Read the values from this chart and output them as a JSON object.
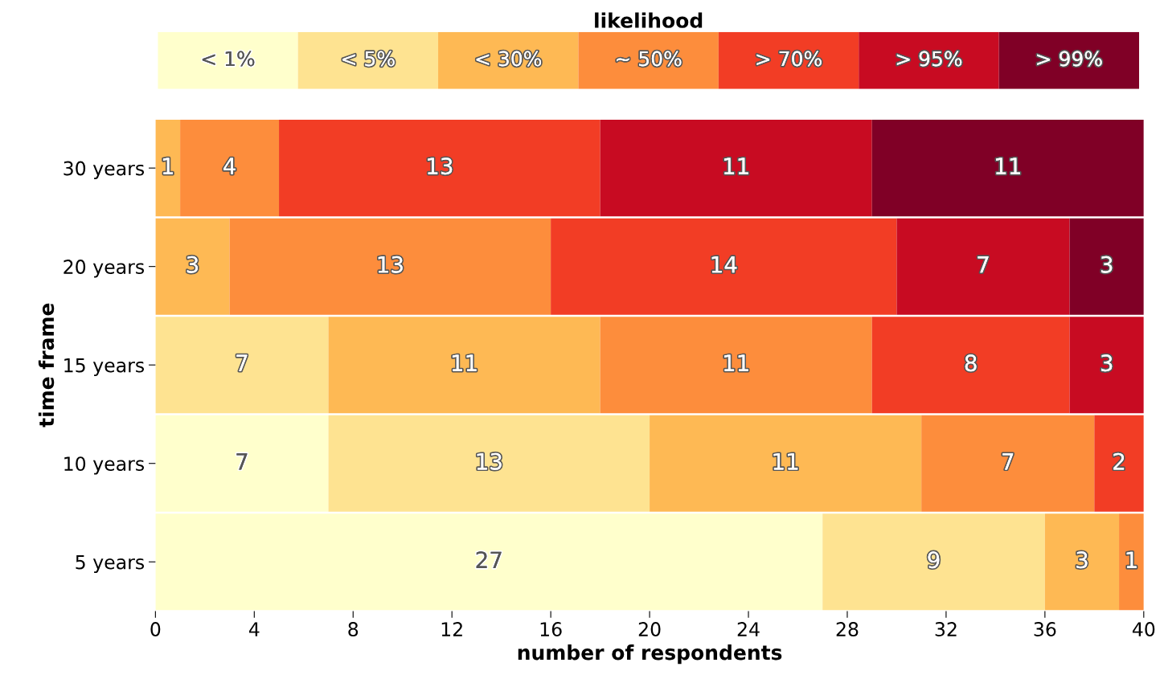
{
  "chart_data": {
    "type": "bar",
    "orientation": "horizontal",
    "stacked": true,
    "xlabel": "number of respondents",
    "ylabel": "time frame",
    "legend_title": "likelihood",
    "legend": "top",
    "data_labels": true,
    "grid": false,
    "categories": [
      "30 years",
      "20 years",
      "15 years",
      "10 years",
      "5 years"
    ],
    "xlim": [
      0,
      40
    ],
    "xticks": [
      0,
      4,
      8,
      12,
      16,
      20,
      24,
      28,
      32,
      36,
      40
    ],
    "series": [
      {
        "name": "< 1%",
        "color": "#ffffcc",
        "values": [
          null,
          null,
          null,
          7,
          27
        ]
      },
      {
        "name": "< 5%",
        "color": "#fee391",
        "values": [
          null,
          null,
          7,
          13,
          9
        ]
      },
      {
        "name": "< 30%",
        "color": "#feb954",
        "values": [
          1,
          3,
          11,
          11,
          3
        ]
      },
      {
        "name": "~ 50%",
        "color": "#fd8d3c",
        "values": [
          4,
          13,
          11,
          7,
          1
        ]
      },
      {
        "name": "> 70%",
        "color": "#f23d25",
        "values": [
          13,
          14,
          8,
          2,
          null
        ]
      },
      {
        "name": "> 95%",
        "color": "#c80b22",
        "values": [
          11,
          7,
          3,
          null,
          null
        ]
      },
      {
        "name": "> 99%",
        "color": "#800026",
        "values": [
          11,
          3,
          null,
          null,
          null
        ]
      }
    ]
  }
}
